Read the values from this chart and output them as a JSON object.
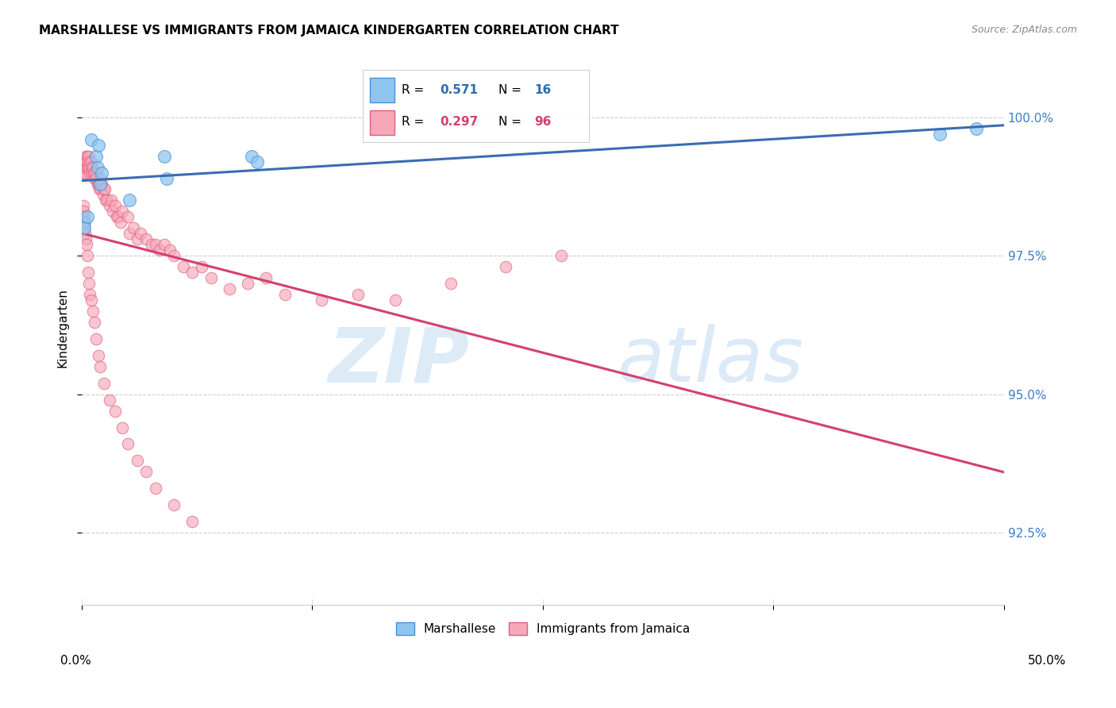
{
  "title": "MARSHALLESE VS IMMIGRANTS FROM JAMAICA KINDERGARTEN CORRELATION CHART",
  "source": "Source: ZipAtlas.com",
  "ylabel_label": "Kindergarten",
  "xmin": 0.0,
  "xmax": 50.0,
  "ymin": 91.2,
  "ymax": 101.2,
  "yticks": [
    92.5,
    95.0,
    97.5,
    100.0
  ],
  "ytick_labels": [
    "92.5%",
    "95.0%",
    "97.5%",
    "100.0%"
  ],
  "marshallese_color": "#8EC6F0",
  "marshallese_edge": "#4A90D9",
  "marshallese_line": "#3B6CB3",
  "jamaica_color": "#F5A8B8",
  "jamaica_edge": "#E06080",
  "jamaica_line": "#D44070",
  "marshallese_x": [
    0.15,
    0.5,
    0.8,
    0.85,
    0.9,
    1.0,
    1.1,
    2.6,
    4.5,
    4.6,
    9.2,
    9.5,
    46.5,
    48.5,
    0.12,
    0.3
  ],
  "marshallese_y": [
    98.1,
    99.6,
    99.3,
    99.1,
    99.5,
    98.8,
    99.0,
    98.5,
    99.3,
    98.9,
    99.3,
    99.2,
    99.7,
    99.8,
    98.0,
    98.2
  ],
  "jamaica_x": [
    0.1,
    0.12,
    0.15,
    0.18,
    0.2,
    0.22,
    0.25,
    0.28,
    0.3,
    0.32,
    0.35,
    0.38,
    0.4,
    0.42,
    0.45,
    0.5,
    0.5,
    0.55,
    0.6,
    0.65,
    0.7,
    0.75,
    0.8,
    0.85,
    0.9,
    0.95,
    1.0,
    1.0,
    1.05,
    1.1,
    1.15,
    1.2,
    1.25,
    1.3,
    1.4,
    1.5,
    1.6,
    1.7,
    1.8,
    1.9,
    2.0,
    2.1,
    2.2,
    2.5,
    2.6,
    2.8,
    3.0,
    3.2,
    3.5,
    3.8,
    4.0,
    4.2,
    4.5,
    4.8,
    5.0,
    5.5,
    6.0,
    6.5,
    7.0,
    8.0,
    9.0,
    10.0,
    11.0,
    13.0,
    15.0,
    17.0,
    20.0,
    23.0,
    26.0,
    0.08,
    0.1,
    0.12,
    0.15,
    0.18,
    0.2,
    0.25,
    0.3,
    0.35,
    0.4,
    0.45,
    0.5,
    0.6,
    0.7,
    0.8,
    0.9,
    1.0,
    1.2,
    1.5,
    1.8,
    2.2,
    2.5,
    3.0,
    3.5,
    4.0,
    5.0,
    6.0
  ],
  "jamaica_y": [
    99.0,
    99.1,
    99.2,
    99.1,
    99.3,
    99.0,
    99.2,
    99.1,
    99.3,
    99.2,
    99.1,
    99.1,
    99.3,
    99.0,
    99.2,
    99.2,
    99.1,
    99.0,
    99.1,
    99.0,
    98.9,
    99.0,
    98.9,
    98.8,
    98.8,
    98.7,
    98.9,
    98.8,
    98.7,
    98.8,
    98.6,
    98.7,
    98.7,
    98.5,
    98.5,
    98.4,
    98.5,
    98.3,
    98.4,
    98.2,
    98.2,
    98.1,
    98.3,
    98.2,
    97.9,
    98.0,
    97.8,
    97.9,
    97.8,
    97.7,
    97.7,
    97.6,
    97.7,
    97.6,
    97.5,
    97.3,
    97.2,
    97.3,
    97.1,
    96.9,
    97.0,
    97.1,
    96.8,
    96.7,
    96.8,
    96.7,
    97.0,
    97.3,
    97.5,
    98.4,
    98.3,
    98.2,
    98.0,
    97.9,
    97.8,
    97.7,
    97.5,
    97.2,
    97.0,
    96.8,
    96.7,
    96.5,
    96.3,
    96.0,
    95.7,
    95.5,
    95.2,
    94.9,
    94.7,
    94.4,
    94.1,
    93.8,
    93.6,
    93.3,
    93.0,
    92.7
  ],
  "background_color": "#FFFFFF",
  "grid_color": "#CCCCCC",
  "watermark_zip": "ZIP",
  "watermark_atlas": "atlas",
  "legend_blue_R": "0.571",
  "legend_blue_N": "16",
  "legend_pink_R": "0.297",
  "legend_pink_N": "96"
}
